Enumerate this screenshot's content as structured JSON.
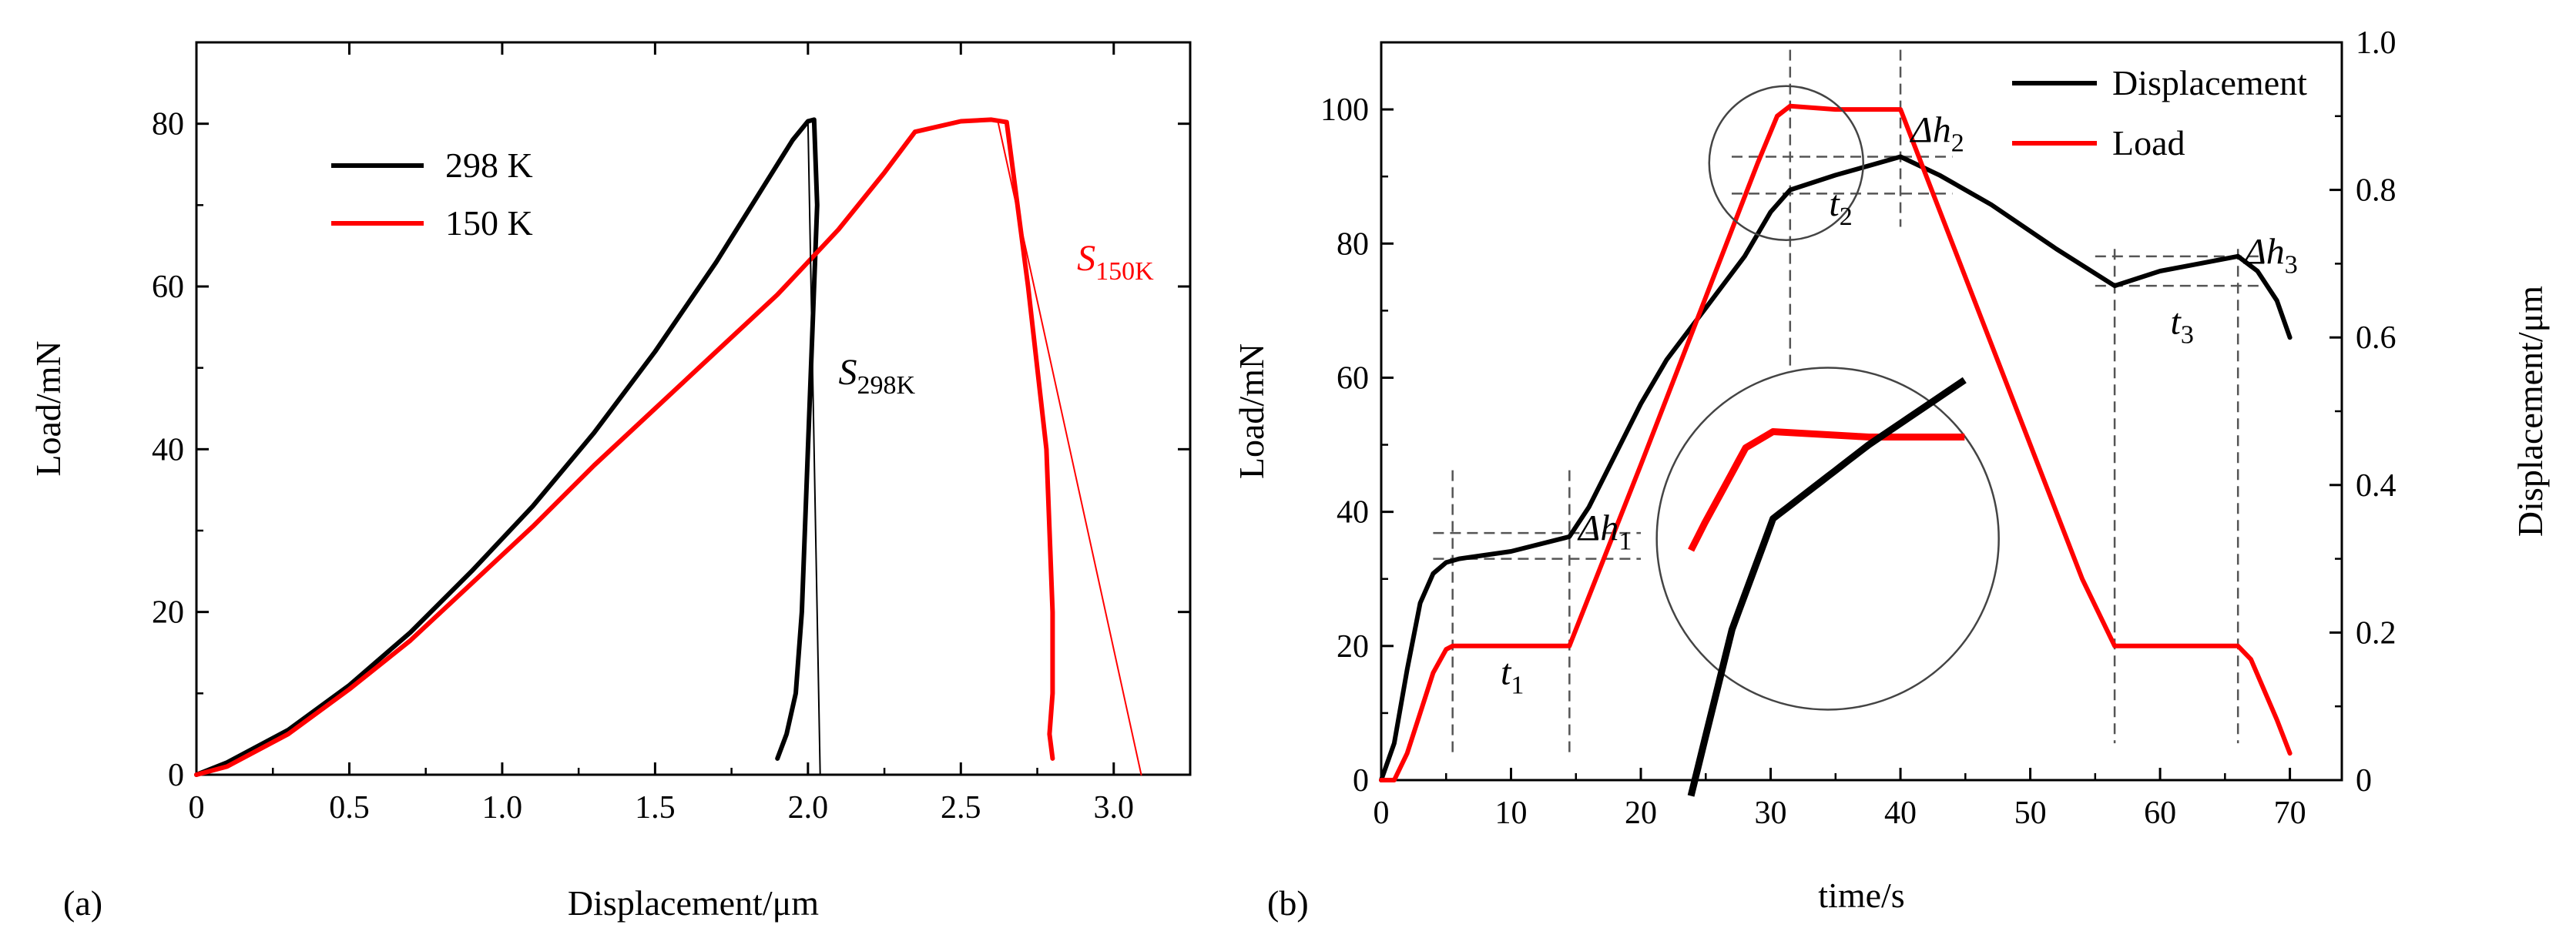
{
  "chart_data": [
    {
      "type": "line",
      "panel_label": "(a)",
      "xlabel": "Displacement/μm",
      "ylabel": "Load/mN",
      "xlim": [
        0,
        3.25
      ],
      "ylim": [
        0,
        90
      ],
      "xticks": [
        0,
        0.5,
        1.0,
        1.5,
        2.0,
        2.5,
        3.0
      ],
      "xtick_labels": [
        "0",
        "0.5",
        "1.0",
        "1.5",
        "2.0",
        "2.5",
        "3.0"
      ],
      "yticks": [
        0,
        20,
        40,
        60,
        80
      ],
      "ytick_labels": [
        "0",
        "20",
        "40",
        "60",
        "80"
      ],
      "legend": [
        "298 K",
        "150 K"
      ],
      "series": [
        {
          "name": "298 K",
          "color": "#000000",
          "x": [
            0,
            0.1,
            0.3,
            0.5,
            0.7,
            0.9,
            1.1,
            1.3,
            1.5,
            1.7,
            1.85,
            1.95,
            2.0,
            2.02,
            2.03,
            2.0,
            1.98,
            1.96,
            1.93,
            1.9
          ],
          "y": [
            0,
            1.5,
            5.5,
            11,
            17.5,
            25,
            33,
            42,
            52,
            63,
            72,
            78,
            80.3,
            80.5,
            70,
            40,
            20,
            10,
            5,
            2
          ]
        },
        {
          "name": "150 K",
          "color": "#ff0000",
          "x": [
            0,
            0.1,
            0.3,
            0.5,
            0.7,
            0.9,
            1.1,
            1.3,
            1.5,
            1.7,
            1.9,
            2.1,
            2.25,
            2.35,
            2.5,
            2.6,
            2.65,
            2.72,
            2.78,
            2.8,
            2.8,
            2.79,
            2.8
          ],
          "y": [
            0,
            1,
            5,
            10.5,
            16.5,
            23.5,
            30.5,
            38,
            45,
            52,
            59,
            67,
            74,
            79,
            80.3,
            80.5,
            80.2,
            60,
            40,
            20,
            10,
            5,
            2
          ]
        },
        {
          "name": "S_298K fit",
          "color": "#000000",
          "x": [
            2.0,
            2.04
          ],
          "y": [
            80.5,
            0
          ]
        },
        {
          "name": "S_150K fit",
          "color": "#ff0000",
          "x": [
            2.62,
            3.09
          ],
          "y": [
            80.5,
            0
          ]
        }
      ],
      "annotations": [
        {
          "base": "S",
          "sub": "298K",
          "x": 2.1,
          "y": 48,
          "color": "#000000"
        },
        {
          "base": "S",
          "sub": "150K",
          "x": 2.88,
          "y": 62,
          "color": "#ff0000"
        }
      ]
    },
    {
      "type": "line",
      "panel_label": "(b)",
      "xlabel": "time/s",
      "ylabel": "Load/mN",
      "y2label": "Displacement/μm",
      "xlim": [
        0,
        74
      ],
      "ylim": [
        0,
        110
      ],
      "y2lim": [
        0,
        1.0
      ],
      "xticks": [
        0,
        10,
        20,
        30,
        40,
        50,
        60,
        70
      ],
      "xtick_labels": [
        "0",
        "10",
        "20",
        "30",
        "40",
        "50",
        "60",
        "70"
      ],
      "yticks": [
        0,
        20,
        40,
        60,
        80,
        100
      ],
      "ytick_labels": [
        "0",
        "20",
        "40",
        "60",
        "80",
        "100"
      ],
      "y2ticks": [
        0,
        0.2,
        0.4,
        0.6,
        0.8,
        1.0
      ],
      "y2tick_labels": [
        "0",
        "0.2",
        "0.4",
        "0.6",
        "0.8",
        "1.0"
      ],
      "legend": [
        "Displacement",
        "Load"
      ],
      "series": [
        {
          "name": "Displacement",
          "color": "#000000",
          "axis": "y2",
          "x": [
            0,
            1,
            2,
            3,
            4,
            5,
            6,
            10,
            14.5,
            16,
            18,
            20,
            22,
            25,
            28,
            30,
            31.5,
            35,
            38,
            40,
            43,
            47,
            52,
            56.5,
            60,
            63,
            66,
            67.5,
            69,
            70
          ],
          "y": [
            0,
            0.05,
            0.15,
            0.24,
            0.28,
            0.295,
            0.3,
            0.31,
            0.33,
            0.37,
            0.44,
            0.51,
            0.57,
            0.64,
            0.71,
            0.77,
            0.8,
            0.82,
            0.835,
            0.845,
            0.82,
            0.78,
            0.72,
            0.67,
            0.69,
            0.7,
            0.71,
            0.69,
            0.65,
            0.6
          ]
        },
        {
          "name": "Load",
          "color": "#ff0000",
          "axis": "y",
          "x": [
            0,
            1,
            2,
            3,
            4,
            5,
            5.5,
            10,
            14.5,
            20,
            25,
            29,
            30.5,
            31.5,
            35,
            40,
            45,
            50,
            54,
            56.5,
            60,
            66,
            67,
            69,
            70
          ],
          "y": [
            0,
            0,
            4,
            10,
            16,
            19.5,
            20,
            20,
            20,
            47,
            72,
            92,
            99,
            100.5,
            100,
            100,
            75,
            50,
            30,
            20,
            20,
            20,
            18,
            9,
            4
          ]
        }
      ],
      "annotations": [
        {
          "label": "Δh",
          "sub": "1",
          "x": 15.2,
          "y": 0.325
        },
        {
          "label": "Δh",
          "sub": "2",
          "x": 40.8,
          "y": 0.865
        },
        {
          "label": "Δh",
          "sub": "3",
          "x": 66.5,
          "y": 0.7
        },
        {
          "label": "t",
          "sub": "1",
          "x": 9.2,
          "y": 0.13
        },
        {
          "label": "t",
          "sub": "2",
          "x": 34.5,
          "y": 0.765
        },
        {
          "label": "t",
          "sub": "3",
          "x": 60.8,
          "y": 0.605
        }
      ]
    }
  ]
}
